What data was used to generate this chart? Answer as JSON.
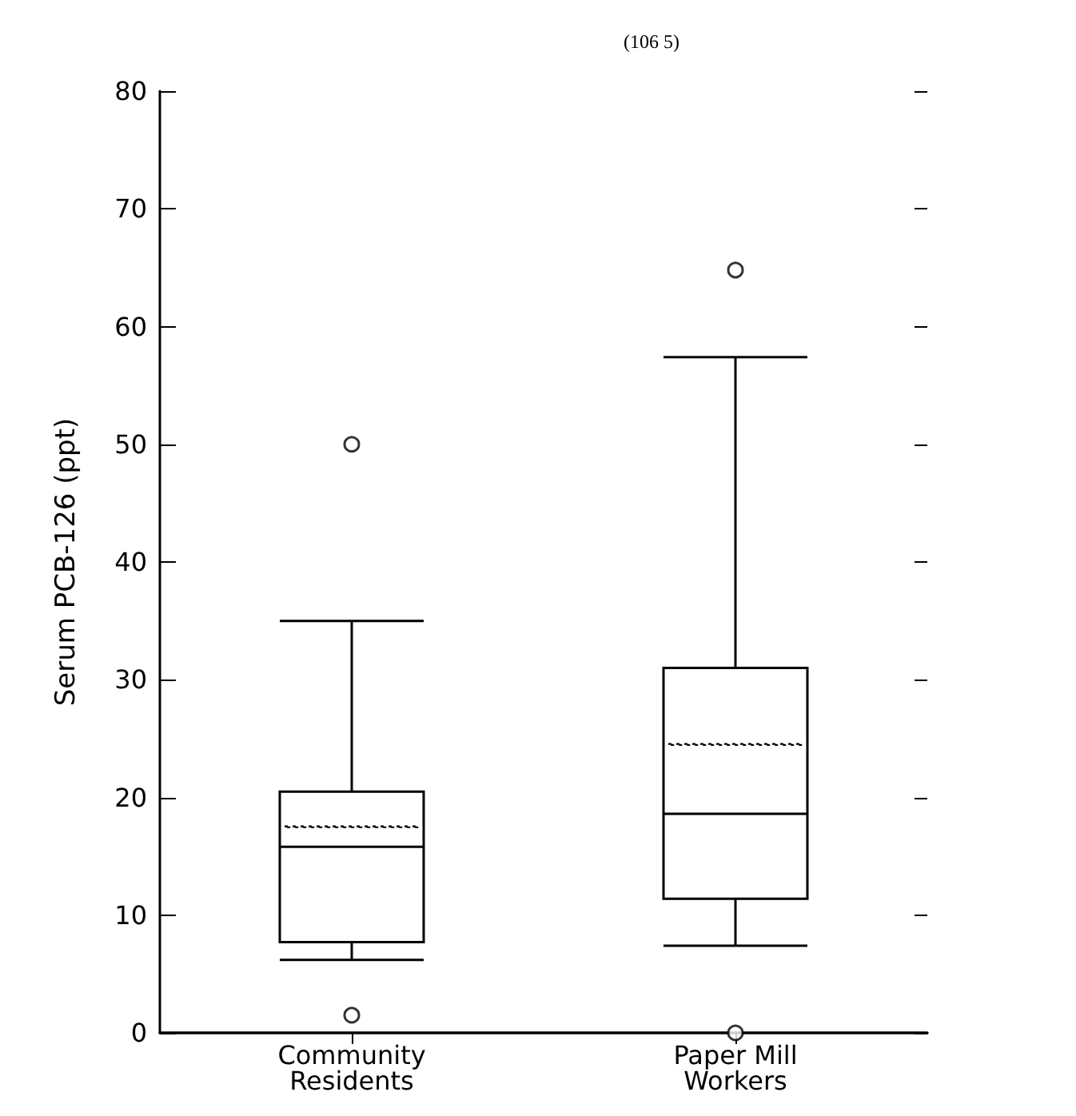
{
  "chart_data": {
    "type": "box",
    "ylabel": "Serum PCB-126 (ppt)",
    "categories": [
      "Community\nResidents",
      "Paper Mill\nWorkers"
    ],
    "boxes": [
      {
        "low": 6.2,
        "q1": 7.7,
        "median": 15.8,
        "q3": 20.5,
        "high": 35,
        "mean": 17.5,
        "outliers": [
          1.5,
          50
        ]
      },
      {
        "low": 7.4,
        "q1": 11.4,
        "median": 18.6,
        "q3": 31,
        "high": 57.4,
        "mean": 24.5,
        "outliers": [
          0,
          64.8
        ]
      }
    ],
    "color": "#000000",
    "ylim": [
      0,
      80
    ],
    "yticks": [
      0,
      10,
      20,
      30,
      40,
      50,
      60,
      70,
      80
    ],
    "annotations": [
      "(106 5)"
    ],
    "grid": false
  }
}
